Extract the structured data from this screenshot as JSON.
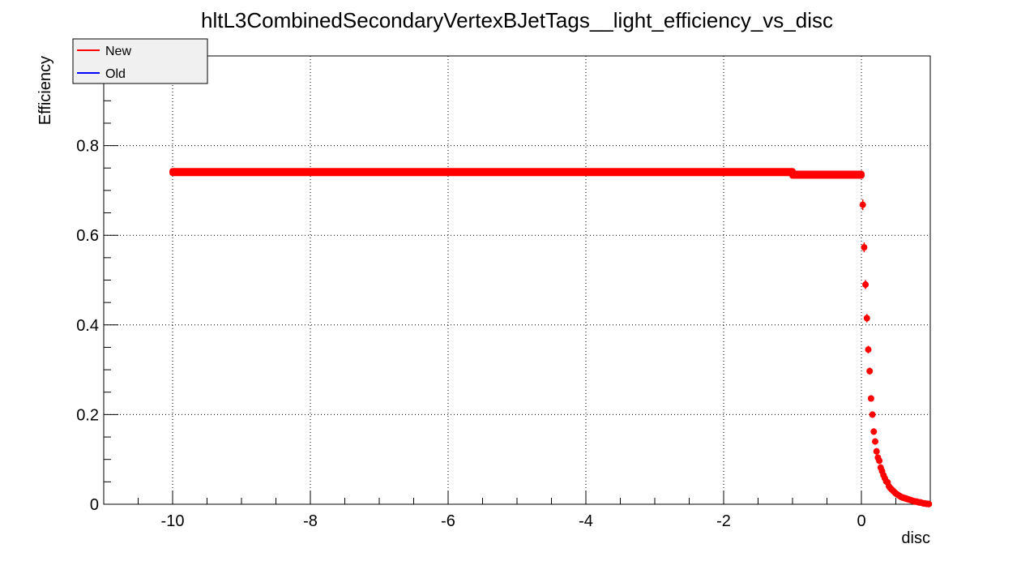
{
  "chart_data": {
    "type": "scatter",
    "title": "hltL3CombinedSecondaryVertexBJetTags__light_efficiency_vs_disc",
    "xlabel": "disc",
    "ylabel": "Efficiency",
    "xlim": [
      -11,
      1
    ],
    "ylim": [
      0,
      1
    ],
    "x_ticks": [
      -10,
      -8,
      -6,
      -4,
      -2,
      0
    ],
    "y_ticks": [
      0,
      0.2,
      0.4,
      0.6,
      0.8
    ],
    "x_tick_labels": [
      "-10",
      "-8",
      "-6",
      "-4",
      "-2",
      "0"
    ],
    "y_tick_labels": [
      "0",
      "0.2",
      "0.4",
      "0.6",
      "0.8"
    ],
    "grid": true,
    "legend_position": "top-left",
    "legend": [
      {
        "label": "New",
        "color": "#ff0000"
      },
      {
        "label": "Old",
        "color": "#0000ff"
      }
    ],
    "series": [
      {
        "name": "New",
        "color": "#ff0000",
        "segments": [
          {
            "x_start": -10,
            "x_end": -1,
            "y": 0.741
          },
          {
            "x_start": -1,
            "x_end": 0,
            "y": 0.735
          }
        ],
        "points": [
          {
            "x": 0.02,
            "y": 0.668
          },
          {
            "x": 0.04,
            "y": 0.573
          },
          {
            "x": 0.06,
            "y": 0.49
          },
          {
            "x": 0.08,
            "y": 0.415
          },
          {
            "x": 0.1,
            "y": 0.345
          },
          {
            "x": 0.12,
            "y": 0.297
          },
          {
            "x": 0.14,
            "y": 0.236
          },
          {
            "x": 0.16,
            "y": 0.2
          },
          {
            "x": 0.18,
            "y": 0.162
          },
          {
            "x": 0.2,
            "y": 0.14
          },
          {
            "x": 0.22,
            "y": 0.118
          },
          {
            "x": 0.24,
            "y": 0.104
          },
          {
            "x": 0.26,
            "y": 0.097
          },
          {
            "x": 0.28,
            "y": 0.082
          },
          {
            "x": 0.3,
            "y": 0.074
          },
          {
            "x": 0.32,
            "y": 0.065
          },
          {
            "x": 0.34,
            "y": 0.058
          },
          {
            "x": 0.36,
            "y": 0.051
          },
          {
            "x": 0.38,
            "y": 0.049
          },
          {
            "x": 0.4,
            "y": 0.04
          },
          {
            "x": 0.42,
            "y": 0.036
          },
          {
            "x": 0.44,
            "y": 0.033
          },
          {
            "x": 0.46,
            "y": 0.03
          },
          {
            "x": 0.48,
            "y": 0.027
          },
          {
            "x": 0.5,
            "y": 0.024
          },
          {
            "x": 0.52,
            "y": 0.022
          },
          {
            "x": 0.54,
            "y": 0.02
          },
          {
            "x": 0.56,
            "y": 0.018
          },
          {
            "x": 0.58,
            "y": 0.016
          },
          {
            "x": 0.6,
            "y": 0.015
          },
          {
            "x": 0.62,
            "y": 0.014
          },
          {
            "x": 0.64,
            "y": 0.013
          },
          {
            "x": 0.66,
            "y": 0.012
          },
          {
            "x": 0.68,
            "y": 0.011
          },
          {
            "x": 0.7,
            "y": 0.01
          },
          {
            "x": 0.72,
            "y": 0.009
          },
          {
            "x": 0.74,
            "y": 0.008
          },
          {
            "x": 0.76,
            "y": 0.007
          },
          {
            "x": 0.78,
            "y": 0.006
          },
          {
            "x": 0.8,
            "y": 0.006
          },
          {
            "x": 0.82,
            "y": 0.005
          },
          {
            "x": 0.84,
            "y": 0.004
          },
          {
            "x": 0.86,
            "y": 0.004
          },
          {
            "x": 0.88,
            "y": 0.003
          },
          {
            "x": 0.9,
            "y": 0.002
          },
          {
            "x": 0.92,
            "y": 0.002
          },
          {
            "x": 0.94,
            "y": 0.001
          },
          {
            "x": 0.96,
            "y": 0.001
          },
          {
            "x": 0.98,
            "y": 0.0005
          }
        ]
      },
      {
        "name": "Old",
        "color": "#0000ff",
        "points": []
      }
    ]
  }
}
